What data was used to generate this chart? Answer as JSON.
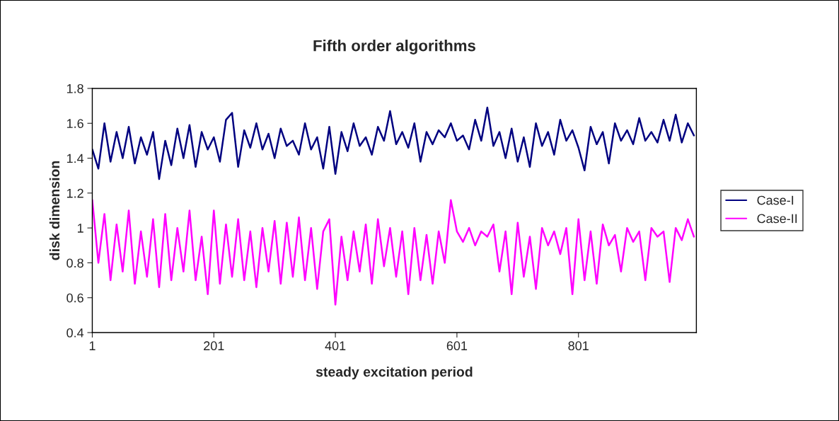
{
  "chart_data": {
    "type": "line",
    "title": "Fifth order algorithms",
    "xlabel": "steady excitation period",
    "ylabel": "disk dimension",
    "x": [
      1,
      11,
      21,
      31,
      41,
      51,
      61,
      71,
      81,
      91,
      101,
      111,
      121,
      131,
      141,
      151,
      161,
      171,
      181,
      191,
      201,
      211,
      221,
      231,
      241,
      251,
      261,
      271,
      281,
      291,
      301,
      311,
      321,
      331,
      341,
      351,
      361,
      371,
      381,
      391,
      401,
      411,
      421,
      431,
      441,
      451,
      461,
      471,
      481,
      491,
      501,
      511,
      521,
      531,
      541,
      551,
      561,
      571,
      581,
      591,
      601,
      611,
      621,
      631,
      641,
      651,
      661,
      671,
      681,
      691,
      701,
      711,
      721,
      731,
      741,
      751,
      761,
      771,
      781,
      791,
      801,
      811,
      821,
      831,
      841,
      851,
      861,
      871,
      881,
      891,
      901,
      911,
      921,
      931,
      941,
      951,
      961,
      971,
      981,
      991
    ],
    "series": [
      {
        "name": "Case-I",
        "color": "#000080",
        "values": [
          1.45,
          1.34,
          1.6,
          1.38,
          1.55,
          1.4,
          1.58,
          1.37,
          1.52,
          1.42,
          1.55,
          1.28,
          1.5,
          1.36,
          1.57,
          1.4,
          1.59,
          1.35,
          1.55,
          1.45,
          1.52,
          1.38,
          1.62,
          1.66,
          1.35,
          1.56,
          1.46,
          1.6,
          1.45,
          1.54,
          1.4,
          1.57,
          1.47,
          1.5,
          1.42,
          1.6,
          1.45,
          1.52,
          1.34,
          1.58,
          1.31,
          1.55,
          1.44,
          1.6,
          1.47,
          1.52,
          1.42,
          1.58,
          1.5,
          1.67,
          1.48,
          1.55,
          1.46,
          1.6,
          1.38,
          1.55,
          1.48,
          1.56,
          1.52,
          1.6,
          1.5,
          1.53,
          1.45,
          1.62,
          1.5,
          1.69,
          1.47,
          1.55,
          1.4,
          1.57,
          1.38,
          1.52,
          1.35,
          1.6,
          1.47,
          1.55,
          1.42,
          1.62,
          1.5,
          1.56,
          1.46,
          1.33,
          1.58,
          1.48,
          1.55,
          1.37,
          1.6,
          1.5,
          1.56,
          1.48,
          1.63,
          1.5,
          1.55,
          1.49,
          1.62,
          1.5,
          1.65,
          1.49,
          1.6,
          1.53
        ]
      },
      {
        "name": "Case-II",
        "color": "#ff00ff",
        "values": [
          1.16,
          0.8,
          1.08,
          0.7,
          1.02,
          0.75,
          1.1,
          0.68,
          0.98,
          0.72,
          1.05,
          0.66,
          1.08,
          0.7,
          1.0,
          0.75,
          1.1,
          0.7,
          0.95,
          0.62,
          1.1,
          0.68,
          1.02,
          0.72,
          1.05,
          0.7,
          0.98,
          0.66,
          1.0,
          0.75,
          1.04,
          0.68,
          1.03,
          0.72,
          1.06,
          0.7,
          1.0,
          0.65,
          0.98,
          1.05,
          0.56,
          0.95,
          0.7,
          0.98,
          0.75,
          1.02,
          0.68,
          1.05,
          0.78,
          1.0,
          0.72,
          0.98,
          0.62,
          1.0,
          0.7,
          0.96,
          0.68,
          0.98,
          0.8,
          1.16,
          0.98,
          0.92,
          1.0,
          0.9,
          0.98,
          0.95,
          1.02,
          0.75,
          0.98,
          0.62,
          1.03,
          0.72,
          0.95,
          0.65,
          1.0,
          0.9,
          0.98,
          0.85,
          1.0,
          0.62,
          1.05,
          0.7,
          0.98,
          0.68,
          1.02,
          0.9,
          0.96,
          0.75,
          1.0,
          0.92,
          0.98,
          0.7,
          1.0,
          0.95,
          0.98,
          0.69,
          1.0,
          0.93,
          1.05,
          0.95
        ]
      }
    ],
    "xlim": [
      1,
      995
    ],
    "xticks": [
      1,
      201,
      401,
      601,
      801
    ],
    "ylim": [
      0.4,
      1.8
    ],
    "yticks": [
      0.4,
      0.6,
      0.8,
      1,
      1.2,
      1.4,
      1.6,
      1.8
    ],
    "grid": false,
    "legend": "right",
    "marker": "none",
    "line_style": "solid"
  }
}
